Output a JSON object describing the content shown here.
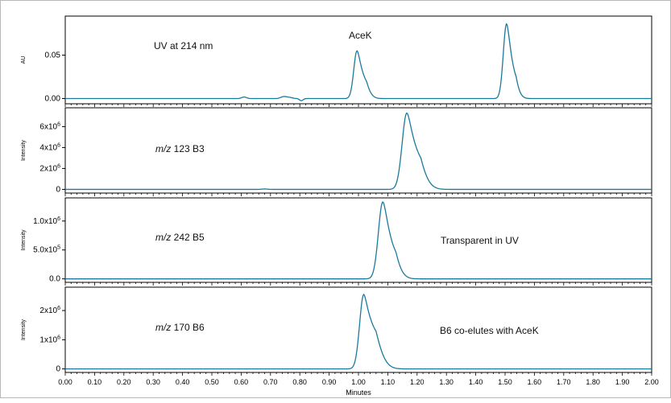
{
  "colors": {
    "trace": "#1a7a9c",
    "axis": "#000000",
    "frame": "#b8b8b8"
  },
  "chart_data": {
    "type": "line",
    "xlabel": "Minutes",
    "xlim": [
      0.0,
      2.0
    ],
    "x_ticks": [
      "0.00",
      "0.10",
      "0.20",
      "0.30",
      "0.40",
      "0.50",
      "0.60",
      "0.70",
      "0.80",
      "0.90",
      "1.00",
      "1.10",
      "1.20",
      "1.30",
      "1.40",
      "1.50",
      "1.60",
      "1.70",
      "1.80",
      "1.90",
      "2.00"
    ],
    "panels": [
      {
        "id": "uv",
        "ylabel": "AU",
        "ylim": [
          -0.006,
          0.095
        ],
        "y_ticks": [
          {
            "value": 0.0,
            "label": "0.00"
          },
          {
            "value": 0.05,
            "label": "0.05"
          }
        ],
        "annotations": [
          {
            "label_italic": "",
            "label": "UV at 214 nm"
          },
          {
            "label_italic": "",
            "label": "AceK"
          }
        ],
        "baseline": 0.0,
        "peaks": [
          {
            "rt": 0.61,
            "height": 0.0018,
            "width": 0.008
          },
          {
            "rt": 0.745,
            "height": 0.0022,
            "width": 0.01
          },
          {
            "rt": 0.765,
            "height": 0.0012,
            "width": 0.01
          },
          {
            "rt": 0.805,
            "height": -0.0025,
            "width": 0.006
          },
          {
            "rt": 0.995,
            "height": 0.055,
            "width": 0.011,
            "tail": 0.012
          },
          {
            "rt": 1.505,
            "height": 0.086,
            "width": 0.011,
            "tail": 0.01
          }
        ]
      },
      {
        "id": "b3",
        "ylabel": "Intensity",
        "ylim": [
          -350000,
          7800000
        ],
        "y_ticks": [
          {
            "value": 0,
            "label": "0"
          },
          {
            "value": 2000000,
            "label": "2x10",
            "sup": "6"
          },
          {
            "value": 4000000,
            "label": "4x10",
            "sup": "6"
          },
          {
            "value": 6000000,
            "label": "6x10",
            "sup": "6"
          }
        ],
        "annotations": [
          {
            "label_italic": "m/z",
            "label": " 123 B3"
          }
        ],
        "baseline": 0,
        "peaks": [
          {
            "rt": 0.68,
            "height": 40000,
            "width": 0.01
          },
          {
            "rt": 1.165,
            "height": 7300000,
            "width": 0.016,
            "tail": 0.02
          }
        ]
      },
      {
        "id": "b5",
        "ylabel": "Intensity",
        "ylim": [
          -60000,
          1400000
        ],
        "y_ticks": [
          {
            "value": 0,
            "label": "0.0"
          },
          {
            "value": 500000,
            "label": "5.0x10",
            "sup": "5"
          },
          {
            "value": 1000000,
            "label": "1.0x10",
            "sup": "6"
          }
        ],
        "annotations": [
          {
            "label_italic": "m/z",
            "label": " 242 B5"
          },
          {
            "label_italic": "",
            "label": "Transparent in UV"
          }
        ],
        "baseline": 0,
        "peaks": [
          {
            "rt": 1.083,
            "height": 1330000,
            "width": 0.015,
            "tail": 0.016
          }
        ]
      },
      {
        "id": "b6",
        "ylabel": "Intensity",
        "ylim": [
          -120000,
          2800000
        ],
        "y_ticks": [
          {
            "value": 0,
            "label": "0"
          },
          {
            "value": 1000000,
            "label": "1x10",
            "sup": "6"
          },
          {
            "value": 2000000,
            "label": "2x10",
            "sup": "6"
          }
        ],
        "annotations": [
          {
            "label_italic": "m/z",
            "label": " 170 B6"
          },
          {
            "label_italic": "",
            "label": "B6 co-elutes with AceK"
          }
        ],
        "baseline": 0,
        "peaks": [
          {
            "rt": 1.018,
            "height": 2550000,
            "width": 0.014,
            "tail": 0.022
          }
        ]
      }
    ]
  }
}
